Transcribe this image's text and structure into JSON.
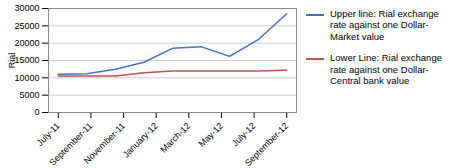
{
  "chart_data": {
    "type": "line",
    "ylabel": "Rial",
    "x": [
      0,
      0.875,
      1.75,
      2.625,
      3.5,
      4.375,
      5.25,
      6.125,
      7
    ],
    "xlim": [
      -0.3,
      7.3
    ],
    "xticks": [
      {
        "value": 0,
        "label": "July-11"
      },
      {
        "value": 1,
        "label": "September-11"
      },
      {
        "value": 2,
        "label": "November-11"
      },
      {
        "value": 3,
        "label": "January-12"
      },
      {
        "value": 4,
        "label": "March-12"
      },
      {
        "value": 5,
        "label": "May-12"
      },
      {
        "value": 6,
        "label": "July-12"
      },
      {
        "value": 7,
        "label": "September-12"
      }
    ],
    "ylim": [
      0,
      30000
    ],
    "yticks": [
      0,
      5000,
      10000,
      15000,
      20000,
      25000,
      30000
    ],
    "grid": true,
    "legend": "right",
    "series": [
      {
        "name": "Upper line: Rial exchange\nrate against one Dollar-\nMarket value",
        "color": "#4472C4",
        "values": [
          11000,
          11200,
          12500,
          14500,
          18500,
          19000,
          16200,
          21000,
          28500
        ]
      },
      {
        "name": "Lower Line: Rial exchange\nrate against one Dollar-\nCentral bank value",
        "color": "#C0504D",
        "values": [
          10500,
          10500,
          10500,
          11500,
          12000,
          12000,
          12000,
          12000,
          12200
        ]
      }
    ]
  }
}
